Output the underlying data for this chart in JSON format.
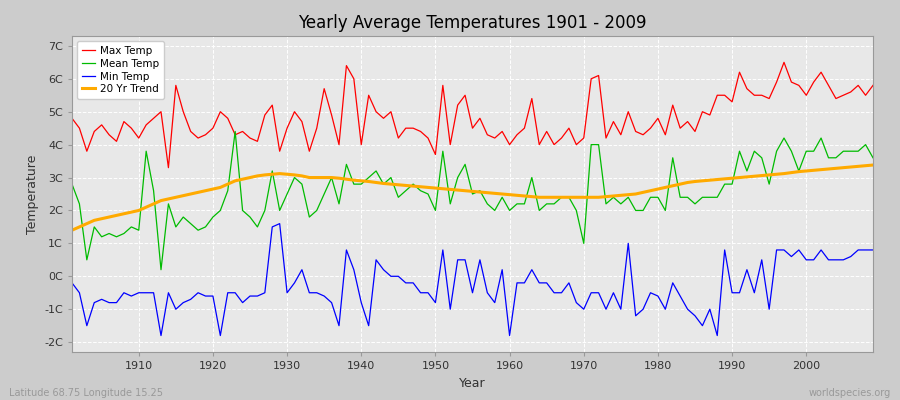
{
  "title": "Yearly Average Temperatures 1901 - 2009",
  "xlabel": "Year",
  "ylabel": "Temperature",
  "bottom_left": "Latitude 68.75 Longitude 15.25",
  "bottom_right": "worldspecies.org",
  "year_start": 1901,
  "year_end": 2009,
  "yticks": [
    -2,
    -1,
    0,
    1,
    2,
    3,
    4,
    5,
    6,
    7
  ],
  "ytick_labels": [
    "-2C",
    "-1C",
    "0C",
    "1C",
    "2C",
    "3C",
    "4C",
    "5C",
    "6C",
    "7C"
  ],
  "xticks": [
    1910,
    1920,
    1930,
    1940,
    1950,
    1960,
    1970,
    1980,
    1990,
    2000
  ],
  "max_temp_color": "#ff0000",
  "mean_temp_color": "#00bb00",
  "min_temp_color": "#0000ff",
  "trend_color": "#ffaa00",
  "legend_labels": [
    "Max Temp",
    "Mean Temp",
    "Min Temp",
    "20 Yr Trend"
  ],
  "max_temp": [
    4.8,
    4.5,
    3.8,
    4.4,
    4.6,
    4.3,
    4.1,
    4.7,
    4.5,
    4.2,
    4.6,
    4.8,
    5.0,
    3.3,
    5.8,
    5.0,
    4.4,
    4.2,
    4.3,
    4.5,
    5.0,
    4.8,
    4.3,
    4.4,
    4.2,
    4.1,
    4.9,
    5.2,
    3.8,
    4.5,
    5.0,
    4.7,
    3.8,
    4.5,
    5.7,
    4.9,
    4.0,
    6.4,
    6.0,
    4.0,
    5.5,
    5.0,
    4.8,
    5.0,
    4.2,
    4.5,
    4.5,
    4.4,
    4.2,
    3.7,
    5.8,
    4.0,
    5.2,
    5.5,
    4.5,
    4.8,
    4.3,
    4.2,
    4.4,
    4.0,
    4.3,
    4.5,
    5.4,
    4.0,
    4.4,
    4.0,
    4.2,
    4.5,
    4.0,
    4.2,
    6.0,
    6.1,
    4.2,
    4.7,
    4.3,
    5.0,
    4.4,
    4.3,
    4.5,
    4.8,
    4.3,
    5.2,
    4.5,
    4.7,
    4.4,
    5.0,
    4.9,
    5.5,
    5.5,
    5.3,
    6.2,
    5.7,
    5.5,
    5.5,
    5.4,
    5.9,
    6.5,
    5.9,
    5.8,
    5.5,
    5.9,
    6.2,
    5.8,
    5.4,
    5.5,
    5.6,
    5.8,
    5.5,
    5.8
  ],
  "mean_temp": [
    2.8,
    2.2,
    0.5,
    1.5,
    1.2,
    1.3,
    1.2,
    1.3,
    1.5,
    1.4,
    3.8,
    2.6,
    0.2,
    2.2,
    1.5,
    1.8,
    1.6,
    1.4,
    1.5,
    1.8,
    2.0,
    2.6,
    4.4,
    2.0,
    1.8,
    1.5,
    2.0,
    3.2,
    2.0,
    2.5,
    3.0,
    2.8,
    1.8,
    2.0,
    2.5,
    3.0,
    2.2,
    3.4,
    2.8,
    2.8,
    3.0,
    3.2,
    2.8,
    3.0,
    2.4,
    2.6,
    2.8,
    2.6,
    2.5,
    2.0,
    3.8,
    2.2,
    3.0,
    3.4,
    2.5,
    2.6,
    2.2,
    2.0,
    2.4,
    2.0,
    2.2,
    2.2,
    3.0,
    2.0,
    2.2,
    2.2,
    2.4,
    2.4,
    2.0,
    1.0,
    4.0,
    4.0,
    2.2,
    2.4,
    2.2,
    2.4,
    2.0,
    2.0,
    2.4,
    2.4,
    2.0,
    3.6,
    2.4,
    2.4,
    2.2,
    2.4,
    2.4,
    2.4,
    2.8,
    2.8,
    3.8,
    3.2,
    3.8,
    3.6,
    2.8,
    3.8,
    4.2,
    3.8,
    3.2,
    3.8,
    3.8,
    4.2,
    3.6,
    3.6,
    3.8,
    3.8,
    3.8,
    4.0,
    3.6
  ],
  "min_temp": [
    -0.2,
    -0.5,
    -1.5,
    -0.8,
    -0.7,
    -0.8,
    -0.8,
    -0.5,
    -0.6,
    -0.5,
    -0.5,
    -0.5,
    -1.8,
    -0.5,
    -1.0,
    -0.8,
    -0.7,
    -0.5,
    -0.6,
    -0.6,
    -1.8,
    -0.5,
    -0.5,
    -0.8,
    -0.6,
    -0.6,
    -0.5,
    1.5,
    1.6,
    -0.5,
    -0.2,
    0.2,
    -0.5,
    -0.5,
    -0.6,
    -0.8,
    -1.5,
    0.8,
    0.2,
    -0.8,
    -1.5,
    0.5,
    0.2,
    0.0,
    0.0,
    -0.2,
    -0.2,
    -0.5,
    -0.5,
    -0.8,
    0.8,
    -1.0,
    0.5,
    0.5,
    -0.5,
    0.5,
    -0.5,
    -0.8,
    0.2,
    -1.8,
    -0.2,
    -0.2,
    0.2,
    -0.2,
    -0.2,
    -0.5,
    -0.5,
    -0.2,
    -0.8,
    -1.0,
    -0.5,
    -0.5,
    -1.0,
    -0.5,
    -1.0,
    1.0,
    -1.2,
    -1.0,
    -0.5,
    -0.6,
    -1.0,
    -0.2,
    -0.6,
    -1.0,
    -1.2,
    -1.5,
    -1.0,
    -1.8,
    0.8,
    -0.5,
    -0.5,
    0.2,
    -0.5,
    0.5,
    -1.0,
    0.8,
    0.8,
    0.6,
    0.8,
    0.5,
    0.5,
    0.8,
    0.5,
    0.5,
    0.5,
    0.6,
    0.8,
    0.8,
    0.8
  ],
  "trend": [
    1.4,
    1.5,
    1.6,
    1.7,
    1.75,
    1.8,
    1.85,
    1.9,
    1.95,
    2.0,
    2.1,
    2.2,
    2.3,
    2.35,
    2.4,
    2.45,
    2.5,
    2.55,
    2.6,
    2.65,
    2.7,
    2.8,
    2.9,
    2.95,
    3.0,
    3.05,
    3.08,
    3.1,
    3.12,
    3.1,
    3.08,
    3.05,
    3.0,
    3.0,
    3.0,
    3.0,
    2.98,
    2.95,
    2.92,
    2.9,
    2.88,
    2.85,
    2.82,
    2.8,
    2.78,
    2.76,
    2.74,
    2.72,
    2.7,
    2.68,
    2.66,
    2.64,
    2.62,
    2.6,
    2.58,
    2.56,
    2.54,
    2.52,
    2.5,
    2.48,
    2.46,
    2.44,
    2.42,
    2.4,
    2.4,
    2.4,
    2.4,
    2.4,
    2.4,
    2.4,
    2.4,
    2.4,
    2.42,
    2.44,
    2.46,
    2.48,
    2.5,
    2.55,
    2.6,
    2.65,
    2.7,
    2.75,
    2.8,
    2.85,
    2.88,
    2.9,
    2.92,
    2.94,
    2.96,
    2.98,
    3.0,
    3.02,
    3.04,
    3.06,
    3.08,
    3.1,
    3.12,
    3.15,
    3.18,
    3.2,
    3.22,
    3.24,
    3.26,
    3.28,
    3.3,
    3.32,
    3.34,
    3.36,
    3.38
  ]
}
